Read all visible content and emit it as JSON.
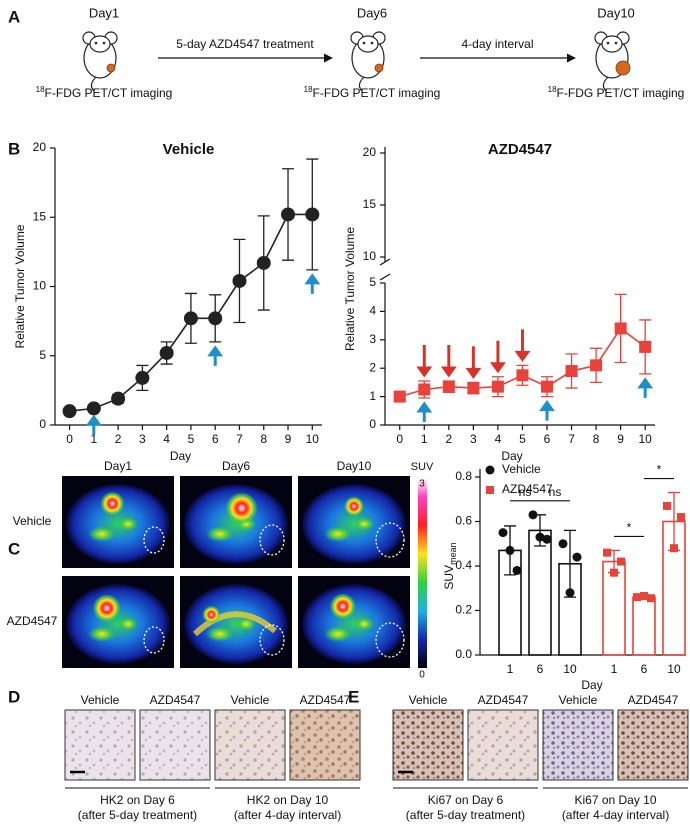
{
  "panel_labels": [
    "A",
    "B",
    "C",
    "D",
    "E"
  ],
  "timeline": {
    "days": [
      "Day1",
      "Day6",
      "Day10"
    ],
    "steps": [
      "5-day AZD4547 treatment",
      "4-day interval"
    ],
    "imaging": {
      "sup": "18",
      "text": "F-FDG PET/CT imaging"
    }
  },
  "chart_data": [
    {
      "type": "line",
      "title": "Vehicle",
      "title_color": "#222222",
      "color": "#222222",
      "marker": "circle",
      "xlabel": "Day",
      "ylabel": "Relative Tumor Volume",
      "x": [
        0,
        1,
        2,
        3,
        4,
        5,
        6,
        7,
        8,
        9,
        10
      ],
      "values": [
        1,
        1.2,
        1.9,
        3.4,
        5.2,
        7.7,
        7.7,
        10.4,
        11.7,
        15.2,
        15.2
      ],
      "errors": [
        0.1,
        0.2,
        0.3,
        0.9,
        0.8,
        1.8,
        1.7,
        3.0,
        3.4,
        3.3,
        4.0
      ],
      "xlim": [
        -0.6,
        10.4
      ],
      "xticks": [
        0,
        1,
        2,
        3,
        4,
        5,
        6,
        7,
        8,
        9,
        10
      ],
      "ylim": [
        0,
        20
      ],
      "yticks": [
        0,
        5,
        10,
        15,
        20
      ],
      "blue_arrow_days": [
        1,
        6,
        10
      ],
      "arrow_color": "#1f8fc8"
    },
    {
      "type": "line",
      "title": "AZD4547",
      "title_color": "#d8322b",
      "color": "#e8423a",
      "marker": "square",
      "xlabel": "Day",
      "ylabel": "Relative Tumor Volume",
      "x": [
        0,
        1,
        2,
        3,
        4,
        5,
        6,
        7,
        8,
        9,
        10
      ],
      "values": [
        1,
        1.25,
        1.35,
        1.3,
        1.35,
        1.75,
        1.35,
        1.9,
        2.1,
        3.4,
        2.75
      ],
      "errors": [
        0.1,
        0.3,
        0.2,
        0.2,
        0.35,
        0.35,
        0.35,
        0.6,
        0.6,
        1.2,
        0.95
      ],
      "xlim": [
        -0.6,
        10.4
      ],
      "xticks": [
        0,
        1,
        2,
        3,
        4,
        5,
        6,
        7,
        8,
        9,
        10
      ],
      "ylim": [
        0,
        5
      ],
      "yticks": [
        0,
        1,
        2,
        3,
        4,
        5
      ],
      "ylim_upper": [
        10,
        20
      ],
      "yticks_upper": [
        10,
        15,
        20
      ],
      "blue_arrow_days": [
        1,
        6,
        10
      ],
      "arrow_color": "#1f8fc8",
      "red_arrow_days": [
        1,
        2,
        3,
        4,
        5
      ],
      "red_arrow_color": "#d8322b"
    },
    {
      "type": "bar",
      "xlabel": "Day",
      "ylabel": {
        "main": "SUV",
        "sub": "mean"
      },
      "categories": [
        "1",
        "6",
        "10",
        "1",
        "6",
        "10"
      ],
      "series": [
        {
          "name": "Vehicle",
          "color": "#111111",
          "marker": "circle",
          "values": [
            0.47,
            0.56,
            0.41,
            null,
            null,
            null
          ],
          "errors": [
            0.11,
            0.07,
            0.15,
            null,
            null,
            null
          ],
          "points": [
            [
              0.55,
              0.38,
              0.47
            ],
            [
              0.63,
              0.52,
              0.53
            ],
            [
              0.5,
              0.44,
              0.28
            ],
            null,
            null,
            null
          ]
        },
        {
          "name": "AZD4547",
          "color": "#e8423a",
          "marker": "square",
          "values": [
            null,
            null,
            null,
            0.42,
            0.26,
            0.6
          ],
          "errors": [
            null,
            null,
            null,
            0.05,
            0.01,
            0.13
          ],
          "points": [
            null,
            null,
            null,
            [
              0.46,
              0.42,
              0.37
            ],
            [
              0.26,
              0.255,
              0.265
            ],
            [
              0.67,
              0.62,
              0.48
            ]
          ]
        }
      ],
      "ylim": [
        0,
        0.8
      ],
      "yticks": [
        {
          "value": 0,
          "label": "0.0"
        },
        {
          "value": 0.2,
          "label": "0.2"
        },
        {
          "value": 0.4,
          "label": "0.4"
        },
        {
          "value": 0.6,
          "label": "0.6"
        },
        {
          "value": 0.8,
          "label": "0.8"
        }
      ],
      "annotations": [
        {
          "text": "ns",
          "from": 0,
          "to": 1
        },
        {
          "text": "ns",
          "from": 1,
          "to": 2
        },
        {
          "text": "*",
          "from": 3,
          "to": 4
        },
        {
          "text": "*",
          "from": 4,
          "to": 5
        }
      ],
      "legend": "top-left"
    }
  ],
  "pet": {
    "columns": [
      "Day1",
      "Day6",
      "Day10"
    ],
    "rows": [
      "Vehicle",
      "AZD4547"
    ],
    "colorbar": {
      "label": "SUV",
      "max": "3",
      "min": "0"
    }
  },
  "ihc": [
    {
      "columns": [
        "Vehicle",
        "AZD4547",
        "Vehicle",
        "AZD4547"
      ],
      "groups": [
        {
          "title": "HK2 on Day 6",
          "note": "(after 5-day treatment)"
        },
        {
          "title": "HK2 on Day 10",
          "note": "(after 4-day interval)"
        }
      ]
    },
    {
      "columns": [
        "Vehicle",
        "AZD4547",
        "Vehicle",
        "AZD4547"
      ],
      "groups": [
        {
          "title": "Ki67 on Day 6",
          "note": "(after 5-day treatment)"
        },
        {
          "title": "Ki67 on Day 10",
          "note": "(after 4-day interval)"
        }
      ]
    }
  ]
}
